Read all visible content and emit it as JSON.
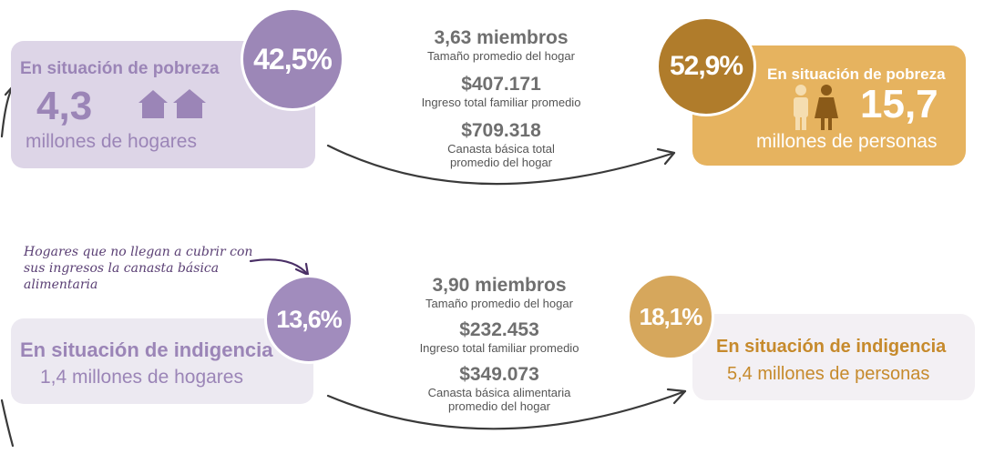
{
  "top_left": {
    "title": "En situación de pobreza",
    "number": "4,3",
    "unit": "millones de hogares",
    "percent": "42,5%",
    "icon": "houses-icon"
  },
  "top_middle": {
    "members": "3,63 miembros",
    "members_label": "Tamaño promedio del hogar",
    "income": "$407.171",
    "income_label": "Ingreso total familiar promedio",
    "basket": "$709.318",
    "basket_label_1": "Canasta básica total",
    "basket_label_2": "promedio del hogar"
  },
  "top_right": {
    "percent": "52,9%",
    "title": "En situación de pobreza",
    "number": "15,7",
    "unit": "millones de personas",
    "icon": "people-icon"
  },
  "note": {
    "line1": "Hogares que no llegan a cubrir con",
    "line2": "sus ingresos la canasta básica",
    "line3": "alimentaria"
  },
  "bottom_left": {
    "percent": "13,6%",
    "title": "En situación de indigencia",
    "unit": "1,4 millones de hogares"
  },
  "bottom_middle": {
    "members": "3,90 miembros",
    "members_label": "Tamaño promedio del hogar",
    "income": "$232.453",
    "income_label": "Ingreso total familiar promedio",
    "basket": "$349.073",
    "basket_label_1": "Canasta básica alimentaria",
    "basket_label_2": "promedio del hogar"
  },
  "bottom_right": {
    "percent": "18,1%",
    "title": "En situación de indigencia",
    "unit": "5,4 millones de personas"
  },
  "colors": {
    "purple": "#9c87b7",
    "purple_light": "#ddd5e7",
    "gold": "#e6b35f",
    "brown": "#b07c2b"
  }
}
